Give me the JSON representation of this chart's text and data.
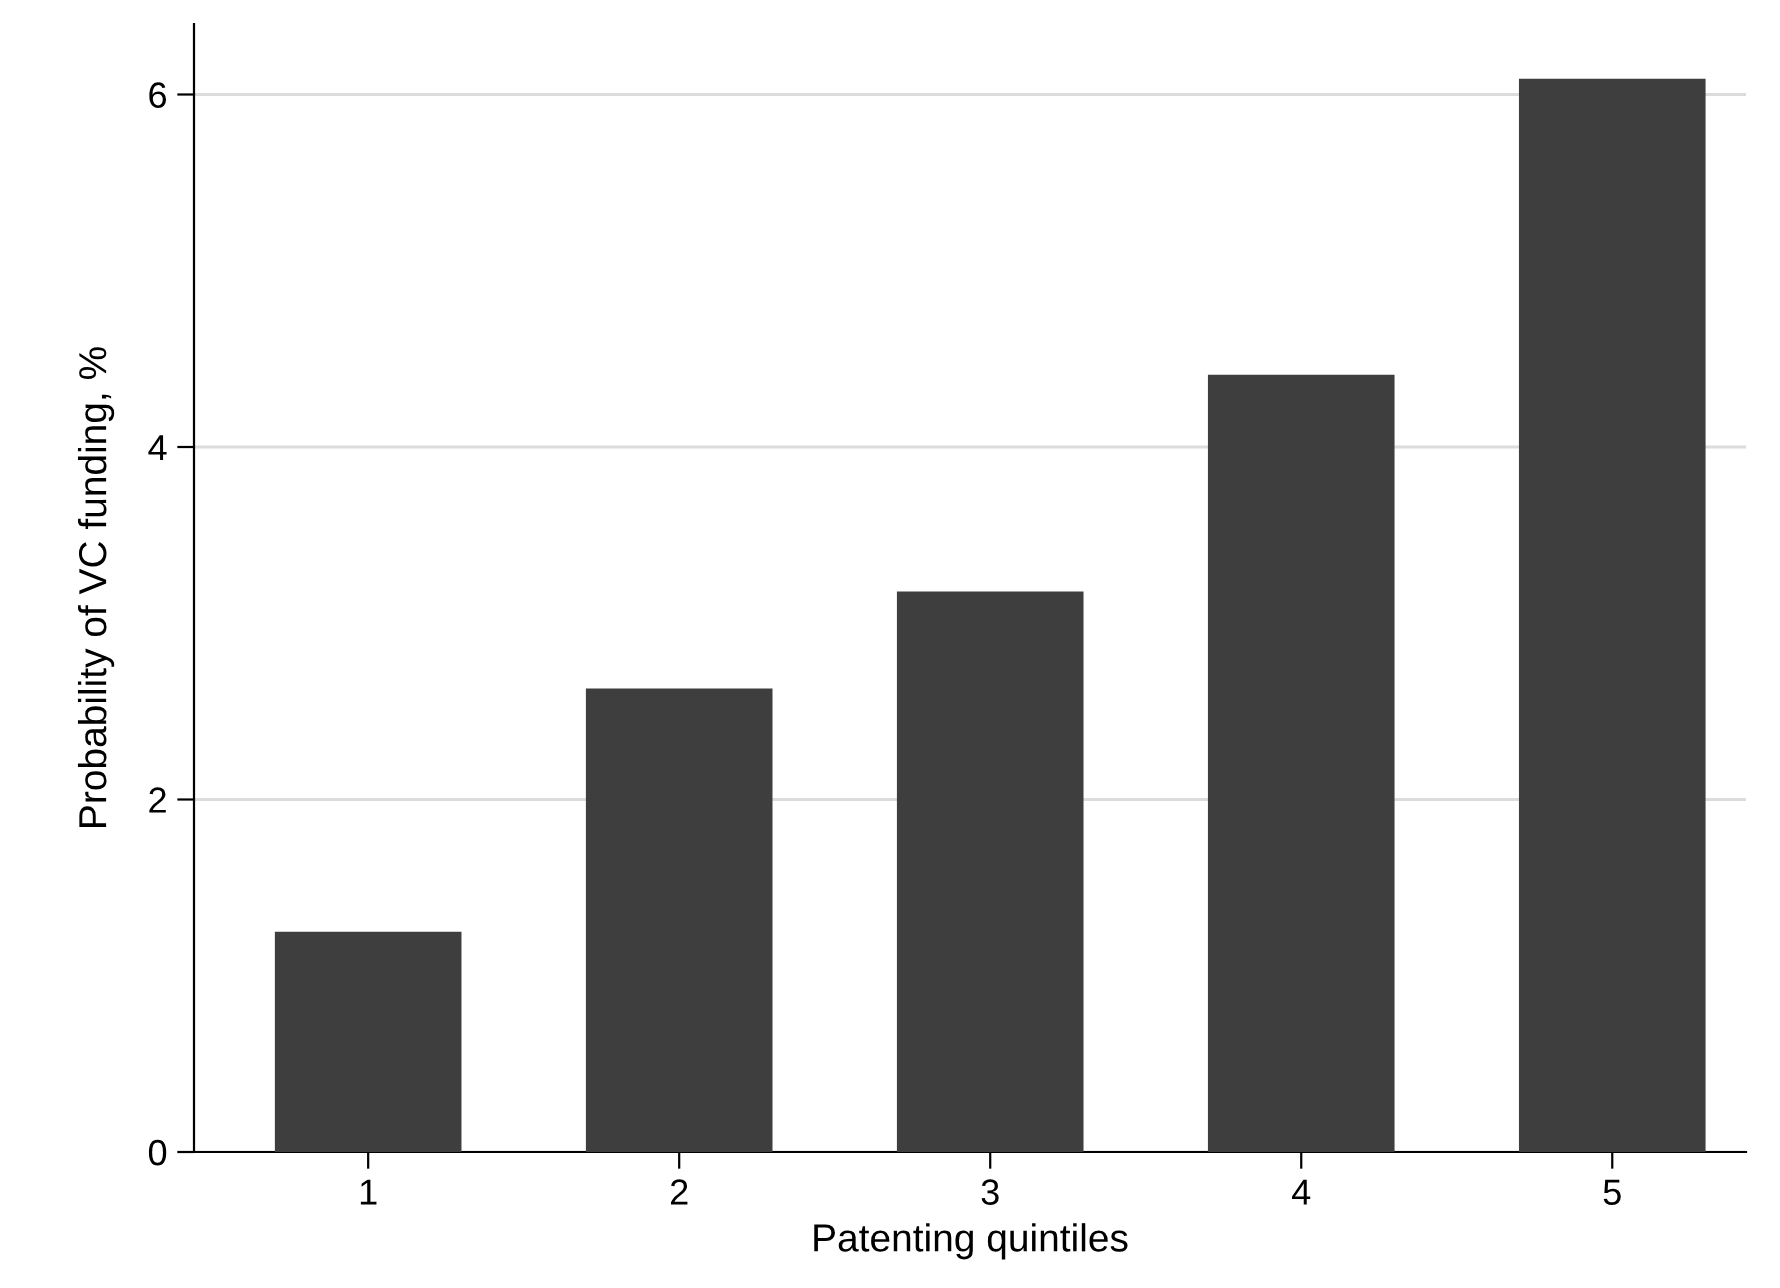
{
  "chart_data": {
    "type": "bar",
    "xlabel": "Patenting quintiles",
    "ylabel": "Probability of VC funding, %",
    "categories": [
      "1",
      "2",
      "3",
      "4",
      "5"
    ],
    "values": [
      1.25,
      2.63,
      3.18,
      4.41,
      6.09
    ],
    "color": "#3e3e3e",
    "ylim": [
      0,
      6.4
    ],
    "yticks": [
      0,
      2,
      4,
      6
    ],
    "grid": "y",
    "legend": false
  }
}
